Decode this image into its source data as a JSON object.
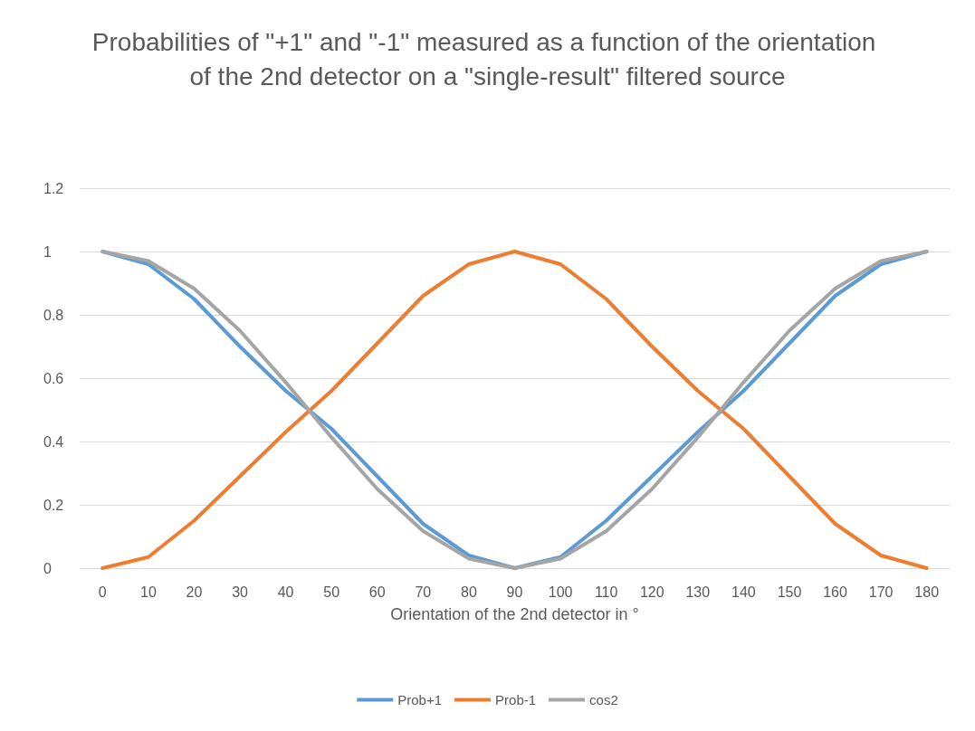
{
  "chart_data": {
    "type": "line",
    "title": "Probabilities of \"+1\" and \"-1\" measured as a function of the orientation of the 2nd detector on a \"single-result\" filtered source",
    "xlabel": "Orientation of the 2nd detector in °",
    "categories": [
      "0",
      "10",
      "20",
      "30",
      "40",
      "50",
      "60",
      "70",
      "80",
      "90",
      "100",
      "110",
      "120",
      "130",
      "140",
      "150",
      "160",
      "170",
      "180"
    ],
    "series": [
      {
        "name": "Prob+1",
        "color": "#5b9bd5",
        "values": [
          1,
          0.96,
          0.85,
          0.7,
          0.56,
          0.44,
          0.29,
          0.14,
          0.04,
          0,
          0.035,
          0.15,
          0.29,
          0.43,
          0.56,
          0.71,
          0.86,
          0.96,
          1
        ]
      },
      {
        "name": "Prob-1",
        "color": "#ed7d31",
        "values": [
          0,
          0.035,
          0.15,
          0.29,
          0.43,
          0.56,
          0.71,
          0.86,
          0.96,
          1,
          0.96,
          0.85,
          0.7,
          0.56,
          0.44,
          0.29,
          0.14,
          0.04,
          0
        ]
      },
      {
        "name": "cos2",
        "color": "#a5a5a5",
        "values": [
          1,
          0.97,
          0.883,
          0.75,
          0.587,
          0.413,
          0.25,
          0.117,
          0.03,
          0,
          0.03,
          0.117,
          0.25,
          0.413,
          0.587,
          0.75,
          0.883,
          0.97,
          1
        ]
      }
    ],
    "ylim": [
      0,
      1.2
    ],
    "yticks": [
      0,
      0.2,
      0.4,
      0.6,
      0.8,
      1,
      1.2
    ],
    "grid": "y",
    "legend": "bottom",
    "marker": "none",
    "line_style": "solid"
  }
}
